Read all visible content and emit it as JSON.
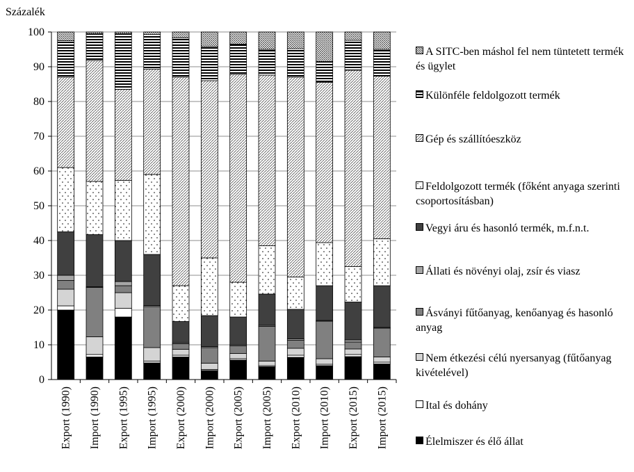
{
  "chart_data": {
    "type": "stacked_bar",
    "y_label": "Százalék",
    "categories": [
      "Export (1990)",
      "Import (1990)",
      "Export (1995)",
      "Import (1995)",
      "Export (2000)",
      "Import (2000)",
      "Export (2005)",
      "Import (2005)",
      "Export (2010)",
      "Import (2010)",
      "Export (2015)",
      "Import (2015)"
    ],
    "ylim": [
      0,
      100
    ],
    "yticks": [
      0,
      10,
      20,
      30,
      40,
      50,
      60,
      70,
      80,
      90,
      100
    ],
    "grid": true,
    "series": [
      {
        "name": "Élelmiszer és élő állat",
        "color": "#000000",
        "pattern": "solid",
        "values": [
          20,
          6.5,
          18,
          4.8,
          6.5,
          2.6,
          5.6,
          3.7,
          6.4,
          4,
          6.6,
          4.5
        ]
      },
      {
        "name": "Ital és dohány",
        "color": "#ffffff",
        "pattern": "solid",
        "values": [
          1.2,
          0.7,
          2.5,
          0.5,
          0.5,
          0.3,
          0.4,
          0.3,
          0.6,
          0.4,
          0.6,
          0.5
        ]
      },
      {
        "name": "Nem étkezési célú nyersanyag (fűtőanyag kivételével)",
        "color": "#d4d4d4",
        "pattern": "solid",
        "values": [
          4.8,
          5.1,
          4.5,
          3.9,
          1.7,
          1.8,
          1.5,
          1.3,
          2,
          1.6,
          1.6,
          1.5
        ]
      },
      {
        "name": "Ásványi fűtőanyag, kenőanyag és hasonló anyag",
        "color": "#808080",
        "pattern": "solid",
        "values": [
          2.5,
          14.2,
          2,
          11.8,
          1.6,
          4.5,
          2.2,
          10,
          2.3,
          10.8,
          2,
          8.3
        ]
      },
      {
        "name": "Állati és növényi olaj, zsír és viasz",
        "color": "#a6a6a6",
        "pattern": "solid",
        "values": [
          1.5,
          0.2,
          1.2,
          0.3,
          0.3,
          0.3,
          0.3,
          0.3,
          0.4,
          0.2,
          0.6,
          0.2
        ]
      },
      {
        "name": "Vegyi áru és hasonló termék, m.f.n.t.",
        "color": "#404040",
        "pattern": "solid",
        "values": [
          12.5,
          15,
          11.8,
          14.7,
          6.1,
          8.9,
          8,
          9,
          8.5,
          10,
          10.9,
          12
        ]
      },
      {
        "name": "Feldolgozott termék (főként anyaga szerinti csoportosításban)",
        "color": "#000000",
        "pattern": "dots",
        "values": [
          18.5,
          15.3,
          17.3,
          23,
          10.3,
          16.6,
          10,
          13.9,
          9.3,
          12.4,
          10.2,
          13.5
        ]
      },
      {
        "name": "Gép és szállítóeszköz",
        "color": "#000000",
        "pattern": "diagonal",
        "values": [
          26,
          34.8,
          26.2,
          30.3,
          60,
          51,
          59.8,
          49.1,
          57.5,
          46.1,
          56.5,
          46.8
        ]
      },
      {
        "name": "Különféle feldolgozott termék",
        "color": "#000000",
        "pattern": "horizontal",
        "values": [
          10.5,
          7.7,
          16,
          10,
          11.3,
          9.8,
          8.7,
          7.4,
          8.2,
          6,
          8.6,
          7.7
        ]
      },
      {
        "name": "A SITC-ben máshol fel nem tüntetett termék és ügylet",
        "color": "#000000",
        "pattern": "dense",
        "values": [
          2.5,
          0.5,
          0.5,
          0.7,
          1.7,
          4.2,
          3.5,
          5,
          4.8,
          8.5,
          2.4,
          5
        ]
      }
    ]
  }
}
